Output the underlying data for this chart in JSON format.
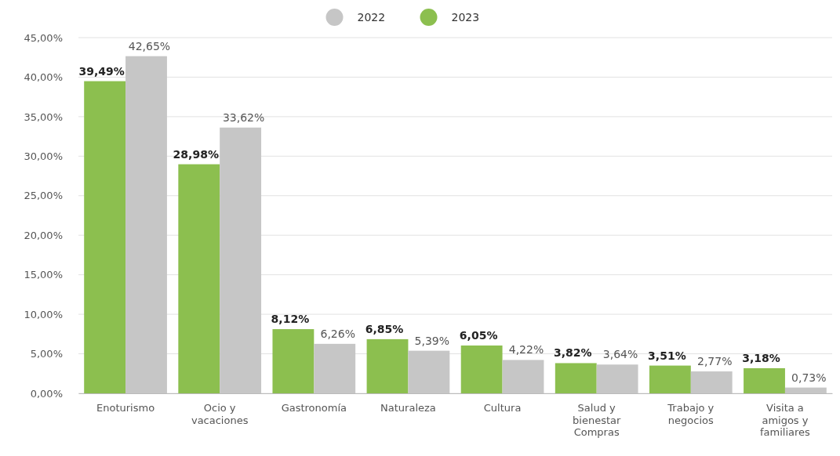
{
  "chart_data": {
    "type": "bar",
    "categories": [
      "Enoturismo",
      "Ocio y vacaciones",
      "Gastronomía",
      "Naturaleza",
      "Cultura",
      "Salud y bienestar Compras",
      "Trabajo y negocios",
      "Visita a amigos y familiares"
    ],
    "series": [
      {
        "name": "2023",
        "color": "#8cbf4f",
        "values": [
          39.49,
          28.98,
          8.12,
          6.85,
          6.05,
          3.82,
          3.51,
          3.18
        ],
        "value_labels": [
          "39,49%",
          "28,98%",
          "8,12%",
          "6,85%",
          "6,05%",
          "3,82%",
          "3,51%",
          "3,18%"
        ]
      },
      {
        "name": "2022",
        "color": "#c6c6c6",
        "values": [
          42.65,
          33.62,
          6.26,
          5.39,
          4.22,
          3.64,
          2.77,
          0.73
        ],
        "value_labels": [
          "42,65%",
          "33,62%",
          "6,26%",
          "5,39%",
          "4,22%",
          "3,64%",
          "2,77%",
          "0,73%"
        ]
      }
    ],
    "ylim": [
      0,
      45
    ],
    "yticks": [
      {
        "value": 0,
        "label": "0,00%"
      },
      {
        "value": 5,
        "label": "5,00%"
      },
      {
        "value": 10,
        "label": "10,00%"
      },
      {
        "value": 15,
        "label": "15,00%"
      },
      {
        "value": 20,
        "label": "20,00%"
      },
      {
        "value": 25,
        "label": "25,00%"
      },
      {
        "value": 30,
        "label": "30,00%"
      },
      {
        "value": 35,
        "label": "35,00%"
      },
      {
        "value": 40,
        "label": "40,00%"
      },
      {
        "value": 45,
        "label": "45,00%"
      }
    ],
    "grid": "y",
    "legend": "top"
  }
}
